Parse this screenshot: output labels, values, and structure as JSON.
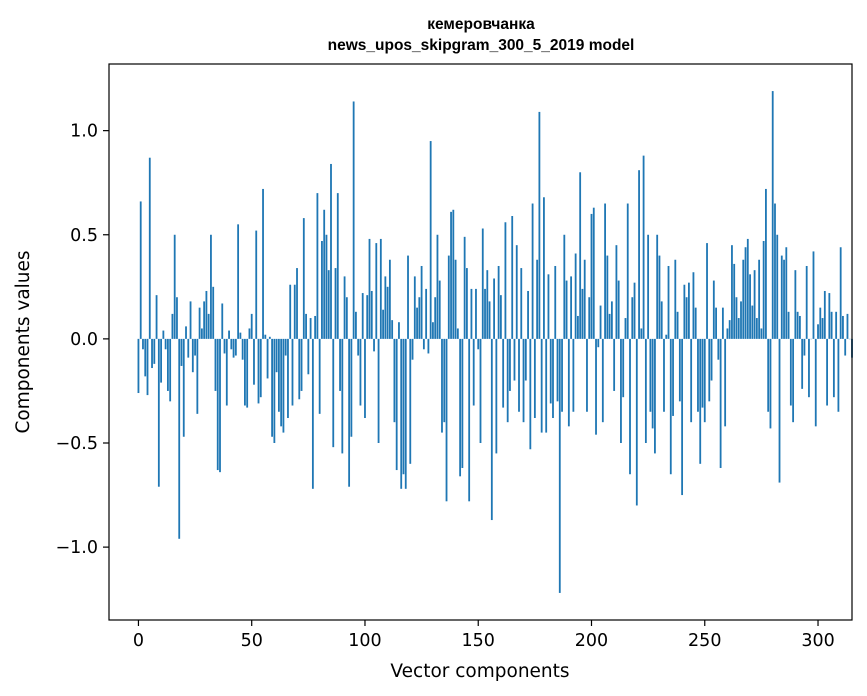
{
  "chart_data": {
    "type": "bar",
    "title_line1": "кемеровчанка",
    "title_line2": "news_upos_skipgram_300_5_2019 model",
    "xlabel": "Vector components",
    "ylabel": "Components values",
    "xlim": [
      -13,
      315
    ],
    "ylim": [
      -1.35,
      1.32
    ],
    "xticks": [
      0,
      50,
      100,
      150,
      200,
      250,
      300
    ],
    "xtick_labels": [
      "0",
      "50",
      "100",
      "150",
      "200",
      "250",
      "300"
    ],
    "yticks": [
      -1.0,
      -0.5,
      0.0,
      0.5,
      1.0
    ],
    "ytick_labels": [
      "−1.0",
      "−0.5",
      "0.0",
      "0.5",
      "1.0"
    ],
    "bar_color": "#1f77b4",
    "grid": false,
    "values": [
      -0.26,
      0.66,
      -0.05,
      -0.18,
      -0.27,
      0.87,
      -0.14,
      -0.12,
      0.21,
      -0.71,
      -0.21,
      0.04,
      -0.05,
      -0.25,
      -0.3,
      0.12,
      0.5,
      0.2,
      -0.96,
      -0.13,
      -0.47,
      0.06,
      -0.09,
      0.18,
      -0.16,
      -0.08,
      -0.36,
      0.15,
      0.05,
      0.18,
      0.23,
      0.12,
      0.5,
      0.25,
      -0.25,
      -0.63,
      -0.64,
      0.17,
      -0.07,
      -0.32,
      0.04,
      -0.05,
      -0.09,
      -0.08,
      0.55,
      0.03,
      -0.1,
      -0.32,
      -0.33,
      0.05,
      0.12,
      -0.22,
      0.52,
      -0.31,
      -0.28,
      0.72,
      0.02,
      -0.19,
      0.01,
      -0.47,
      -0.5,
      -0.16,
      -0.35,
      -0.42,
      -0.45,
      -0.08,
      -0.38,
      0.26,
      -0.32,
      0.26,
      0.34,
      -0.29,
      -0.25,
      0.58,
      0.12,
      -0.17,
      0.1,
      -0.72,
      0.11,
      0.7,
      -0.36,
      0.47,
      0.62,
      0.5,
      0.33,
      0.84,
      -0.52,
      0.34,
      0.7,
      -0.25,
      -0.55,
      0.3,
      0.2,
      -0.71,
      -0.47,
      1.14,
      0.13,
      -0.08,
      -0.32,
      0.22,
      -0.38,
      0.21,
      0.48,
      0.23,
      -0.06,
      0.46,
      -0.5,
      0.48,
      0.14,
      0.3,
      0.25,
      0.38,
      0.09,
      -0.4,
      -0.63,
      0.08,
      -0.72,
      -0.65,
      -0.72,
      0.4,
      -0.6,
      -0.1,
      0.3,
      0.15,
      0.2,
      0.35,
      -0.05,
      0.24,
      -0.07,
      0.95,
      0.08,
      0.2,
      0.5,
      0.28,
      -0.45,
      -0.4,
      -0.78,
      0.4,
      0.61,
      0.62,
      0.38,
      0.05,
      -0.66,
      -0.62,
      0.49,
      0.34,
      -0.78,
      0.24,
      -0.32,
      0.24,
      -0.05,
      -0.5,
      0.53,
      0.24,
      0.33,
      0.18,
      -0.87,
      0.29,
      -0.55,
      0.35,
      0.21,
      -0.33,
      0.56,
      -0.4,
      -0.25,
      0.59,
      -0.2,
      0.45,
      -0.35,
      0.34,
      -0.4,
      -0.2,
      0.23,
      -0.53,
      0.65,
      -0.38,
      0.38,
      1.09,
      -0.45,
      0.68,
      -0.45,
      0.31,
      -0.31,
      -0.38,
      0.35,
      -0.3,
      -1.22,
      -0.35,
      0.5,
      0.28,
      -0.42,
      0.3,
      -0.35,
      0.41,
      0.11,
      0.8,
      0.24,
      0.38,
      -0.35,
      0.2,
      0.6,
      0.63,
      -0.46,
      -0.04,
      0.16,
      -0.4,
      0.65,
      0.4,
      0.12,
      0.18,
      -0.25,
      0.45,
      0.28,
      -0.5,
      -0.28,
      0.1,
      0.65,
      -0.65,
      0.2,
      0.27,
      -0.8,
      0.81,
      0.05,
      0.88,
      -0.5,
      0.5,
      -0.35,
      -0.43,
      -0.55,
      0.5,
      0.4,
      0.18,
      -0.35,
      0.02,
      0.35,
      -0.65,
      -0.37,
      0.38,
      0.13,
      -0.3,
      -0.75,
      0.26,
      0.2,
      0.27,
      -0.4,
      0.32,
      0.15,
      -0.35,
      -0.6,
      -0.33,
      -0.4,
      0.46,
      -0.3,
      -0.2,
      0.28,
      0.15,
      -0.1,
      -0.62,
      0.15,
      -0.42,
      0.05,
      0.09,
      0.45,
      0.36,
      0.2,
      0.1,
      0.18,
      0.38,
      0.44,
      0.48,
      0.31,
      0.16,
      0.33,
      0.1,
      0.38,
      0.05,
      0.47,
      0.72,
      -0.35,
      -0.43,
      1.19,
      0.65,
      0.5,
      -0.69,
      0.4,
      0.38,
      0.44,
      0.13,
      -0.32,
      -0.4,
      0.33,
      0.13,
      0.11,
      -0.24,
      -0.08,
      0.35,
      -0.28,
      0.0,
      0.42,
      -0.42,
      0.07,
      0.15,
      0.1,
      0.23,
      -0.32,
      0.22,
      0.13,
      -0.28,
      0.13,
      -0.35,
      0.44,
      0.11,
      -0.08,
      0.12,
      0.0,
      -0.09
    ]
  }
}
